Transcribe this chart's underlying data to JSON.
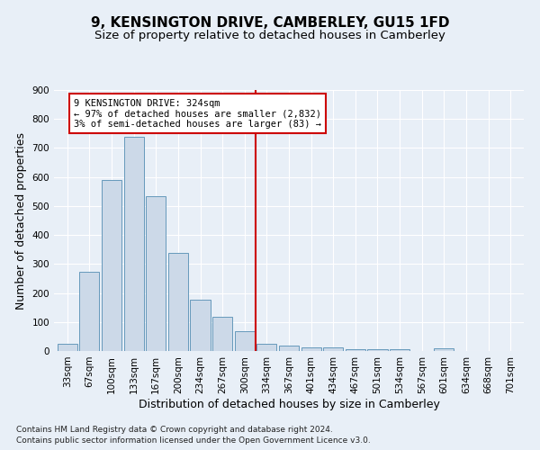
{
  "title": "9, KENSINGTON DRIVE, CAMBERLEY, GU15 1FD",
  "subtitle": "Size of property relative to detached houses in Camberley",
  "xlabel": "Distribution of detached houses by size in Camberley",
  "ylabel": "Number of detached properties",
  "footer_line1": "Contains HM Land Registry data © Crown copyright and database right 2024.",
  "footer_line2": "Contains public sector information licensed under the Open Government Licence v3.0.",
  "categories": [
    "33sqm",
    "67sqm",
    "100sqm",
    "133sqm",
    "167sqm",
    "200sqm",
    "234sqm",
    "267sqm",
    "300sqm",
    "334sqm",
    "367sqm",
    "401sqm",
    "434sqm",
    "467sqm",
    "501sqm",
    "534sqm",
    "567sqm",
    "601sqm",
    "634sqm",
    "668sqm",
    "701sqm"
  ],
  "values": [
    25,
    272,
    590,
    740,
    535,
    338,
    178,
    118,
    68,
    25,
    20,
    13,
    13,
    5,
    5,
    5,
    0,
    8,
    0,
    0,
    0
  ],
  "bar_color": "#ccd9e8",
  "bar_edge_color": "#6699bb",
  "vline_x": 8.5,
  "vline_color": "#cc0000",
  "annotation_title": "9 KENSINGTON DRIVE: 324sqm",
  "annotation_line1": "← 97% of detached houses are smaller (2,832)",
  "annotation_line2": "3% of semi-detached houses are larger (83) →",
  "annotation_box_color": "white",
  "annotation_box_edge_color": "#cc0000",
  "ylim": [
    0,
    900
  ],
  "yticks": [
    0,
    100,
    200,
    300,
    400,
    500,
    600,
    700,
    800,
    900
  ],
  "background_color": "#e8eff7",
  "grid_color": "white",
  "title_fontsize": 11,
  "subtitle_fontsize": 9.5,
  "axis_label_fontsize": 9,
  "tick_fontsize": 7.5,
  "footer_fontsize": 6.5
}
